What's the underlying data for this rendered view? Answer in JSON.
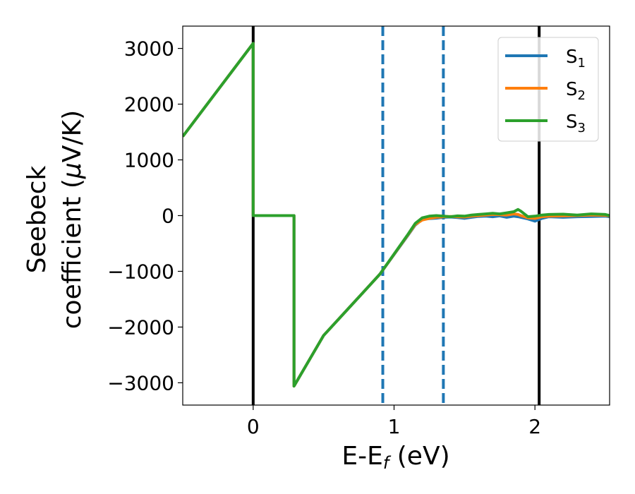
{
  "chart_data": {
    "type": "line",
    "xlabel": {
      "main": "E-E",
      "sub": "f",
      "tail": " (eV)"
    },
    "ylabel": {
      "line1": "Seebeck",
      "line2": "coefficient  (",
      "mu": "μ",
      "line2_tail": "V/K)"
    },
    "xlim": [
      -0.5,
      2.53
    ],
    "ylim": [
      -3400,
      3400
    ],
    "xticks": [
      0,
      1,
      2
    ],
    "xtick_labels": [
      "0",
      "1",
      "2"
    ],
    "yticks": [
      3000,
      2000,
      1000,
      0,
      -1000,
      -2000,
      -3000
    ],
    "ytick_labels": [
      "3000",
      "2000",
      "1000",
      "0",
      "−1000",
      "−2000",
      "−3000"
    ],
    "grid": false,
    "legend_position": "top-right",
    "vertical_lines": [
      {
        "x": 0.0,
        "style": "solid",
        "color": "#000000"
      },
      {
        "x": 0.92,
        "style": "dashed",
        "color": "#1f77b4"
      },
      {
        "x": 1.35,
        "style": "dashed",
        "color": "#1f77b4"
      },
      {
        "x": 2.03,
        "style": "solid",
        "color": "#000000"
      }
    ],
    "series": [
      {
        "name": "S",
        "sub": "1",
        "color": "#1f77b4",
        "x": [
          -0.5,
          0.0,
          0.0,
          0.29,
          0.29,
          0.5,
          0.7,
          0.9,
          1.1,
          1.15,
          1.2,
          1.25,
          1.3,
          1.35,
          1.4,
          1.45,
          1.5,
          1.55,
          1.6,
          1.65,
          1.7,
          1.75,
          1.8,
          1.85,
          1.88,
          1.9,
          1.95,
          2.0,
          2.05,
          2.1,
          2.2,
          2.3,
          2.4,
          2.5,
          2.53
        ],
        "y": [
          1420,
          3090,
          0,
          0,
          -3060,
          -2150,
          -1600,
          -1050,
          -350,
          -170,
          -70,
          -55,
          -45,
          -30,
          -25,
          -35,
          -50,
          -30,
          -15,
          -10,
          -20,
          -5,
          -30,
          -10,
          -20,
          -30,
          -60,
          -100,
          -50,
          -20,
          -30,
          -20,
          -15,
          -10,
          -20
        ]
      },
      {
        "name": "S",
        "sub": "2",
        "color": "#ff7f0e",
        "x": [
          -0.5,
          0.0,
          0.0,
          0.29,
          0.29,
          0.5,
          0.7,
          0.9,
          1.1,
          1.15,
          1.2,
          1.25,
          1.3,
          1.35,
          1.4,
          1.45,
          1.5,
          1.55,
          1.6,
          1.65,
          1.7,
          1.75,
          1.8,
          1.85,
          1.88,
          1.9,
          1.95,
          2.0,
          2.05,
          2.1,
          2.2,
          2.3,
          2.4,
          2.5,
          2.53
        ],
        "y": [
          1420,
          3090,
          0,
          0,
          -3060,
          -2150,
          -1600,
          -1050,
          -340,
          -160,
          -80,
          -50,
          -30,
          -20,
          -15,
          -20,
          -25,
          -10,
          0,
          10,
          20,
          15,
          10,
          30,
          20,
          0,
          -40,
          -50,
          -20,
          -10,
          -5,
          0,
          10,
          5,
          -5
        ]
      },
      {
        "name": "S",
        "sub": "3",
        "color": "#2ca02c",
        "x": [
          -0.5,
          0.0,
          0.0,
          0.29,
          0.29,
          0.5,
          0.7,
          0.9,
          1.1,
          1.15,
          1.2,
          1.25,
          1.3,
          1.35,
          1.4,
          1.45,
          1.5,
          1.55,
          1.6,
          1.65,
          1.7,
          1.75,
          1.8,
          1.85,
          1.88,
          1.9,
          1.95,
          2.0,
          2.05,
          2.1,
          2.2,
          2.3,
          2.4,
          2.5,
          2.53
        ],
        "y": [
          1420,
          3090,
          0,
          0,
          -3060,
          -2150,
          -1600,
          -1050,
          -330,
          -140,
          -40,
          -10,
          0,
          -10,
          -20,
          -5,
          -10,
          10,
          20,
          30,
          40,
          30,
          50,
          70,
          110,
          80,
          -20,
          -10,
          10,
          20,
          25,
          10,
          30,
          20,
          0
        ]
      }
    ]
  }
}
